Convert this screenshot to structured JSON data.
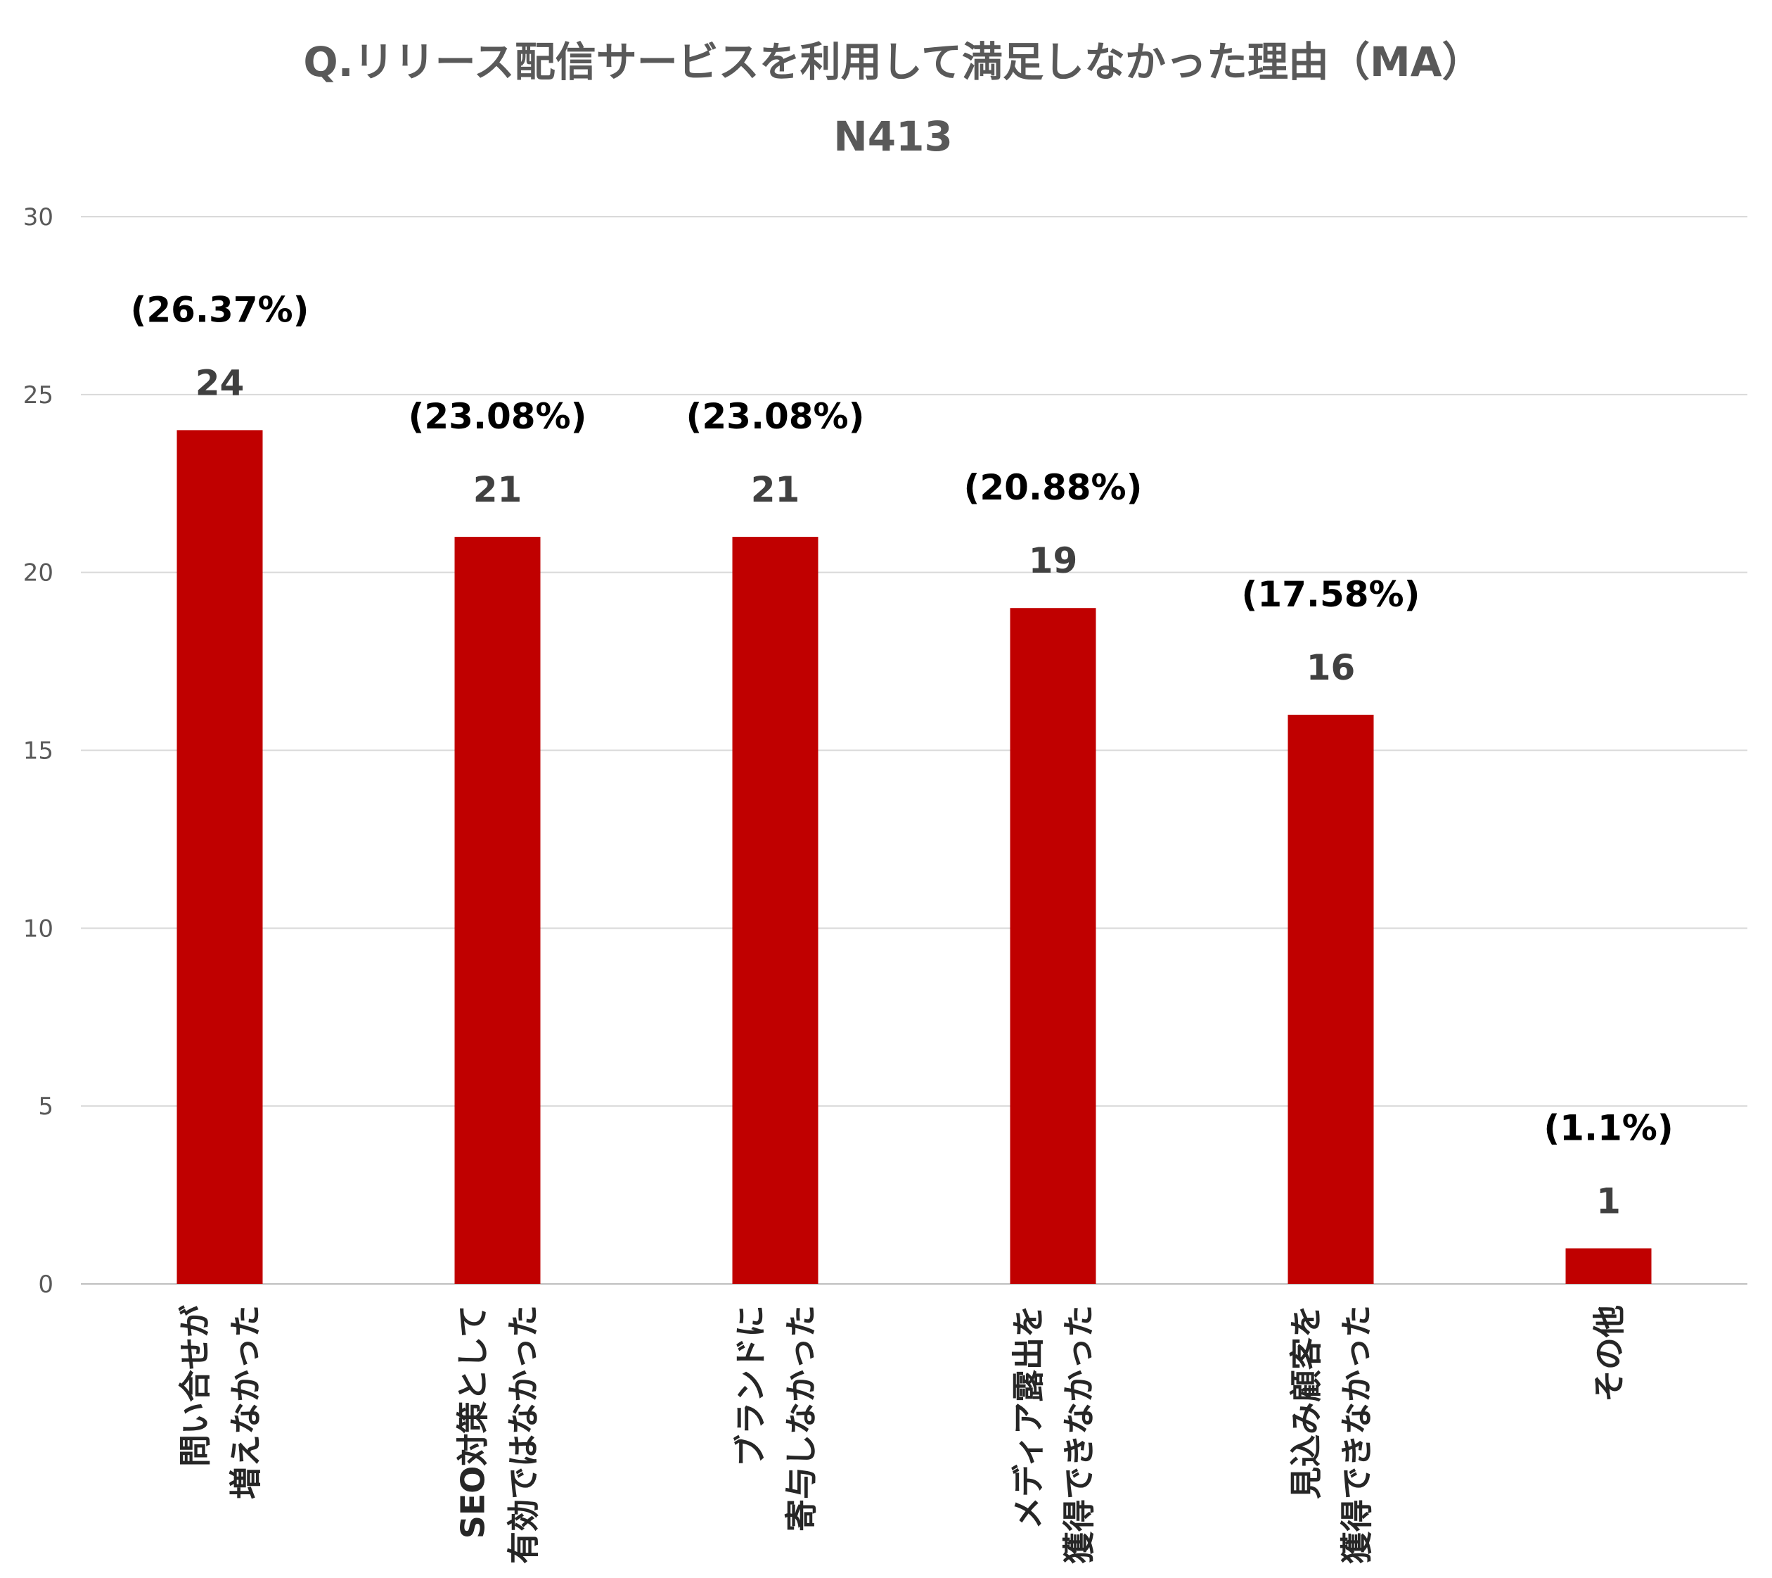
{
  "chart_data": {
    "type": "bar",
    "title": "Q.リリース配信サービスを利用して満足しなかった理由（MA）",
    "subtitle": "N413",
    "categories": [
      [
        "問い合せが",
        "増えなかった"
      ],
      [
        "SEO対策として",
        "有効ではなかった"
      ],
      [
        "ブランドに",
        "寄与しなかった"
      ],
      [
        "メディア露出を",
        "獲得できなかった"
      ],
      [
        "見込み顧客を",
        "獲得できなかった"
      ],
      [
        "その他"
      ]
    ],
    "values": [
      24,
      21,
      21,
      19,
      16,
      1
    ],
    "value_labels": [
      "24",
      "21",
      "21",
      "19",
      "16",
      "1"
    ],
    "percent_labels": [
      "(26.37%)",
      "(23.08%)",
      "(23.08%)",
      "(20.88%)",
      "(17.58%)",
      "(1.1%)"
    ],
    "ylim": [
      0,
      30
    ],
    "yticks": [
      0,
      5,
      10,
      15,
      20,
      25,
      30
    ],
    "ytick_labels": [
      "0",
      "5",
      "10",
      "15",
      "20",
      "25",
      "30"
    ],
    "grid": true,
    "legend": "none",
    "colors": {
      "bar": "#c00000",
      "title": "#595959",
      "grid": "#d9d9d9"
    }
  }
}
